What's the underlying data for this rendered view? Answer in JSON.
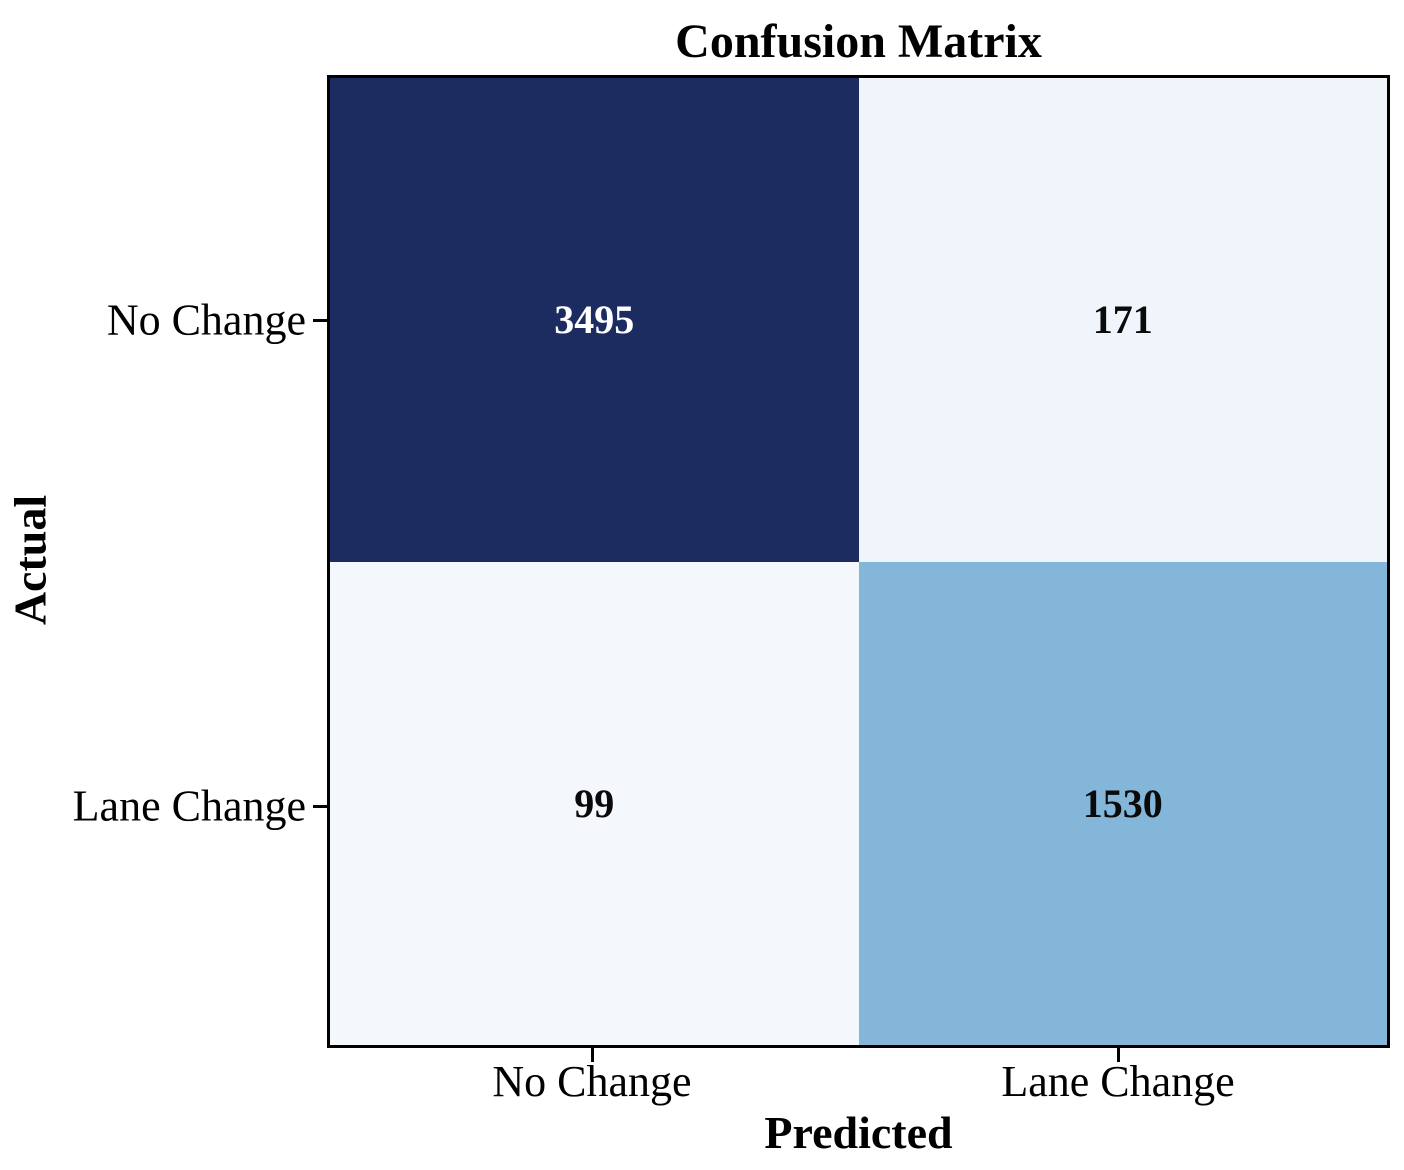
{
  "chart_data": {
    "type": "heatmap",
    "title": "Confusion Matrix",
    "xlabel": "Predicted",
    "ylabel": "Actual",
    "x_categories": [
      "No Change",
      "Lane Change"
    ],
    "y_categories": [
      "No Change",
      "Lane Change"
    ],
    "matrix": [
      [
        3495,
        171
      ],
      [
        99,
        1530
      ]
    ],
    "value_range": [
      99,
      3495
    ],
    "legend": "none",
    "grid": false,
    "cells": [
      {
        "row": "No Change",
        "col": "No Change",
        "value": "3495",
        "bg": "#1c2b60",
        "fg": "#ffffff"
      },
      {
        "row": "No Change",
        "col": "Lane Change",
        "value": "171",
        "bg": "#eff5fa",
        "fg": "#0a0a0a"
      },
      {
        "row": "Lane Change",
        "col": "No Change",
        "value": "99",
        "bg": "#f4f8fc",
        "fg": "#0a0a0a"
      },
      {
        "row": "Lane Change",
        "col": "Lane Change",
        "value": "1530",
        "bg": "#84b6d9",
        "fg": "#0a0a0a"
      }
    ],
    "colors": {
      "spine": "#000000",
      "title_text": "#000000",
      "background": "#ffffff"
    }
  }
}
